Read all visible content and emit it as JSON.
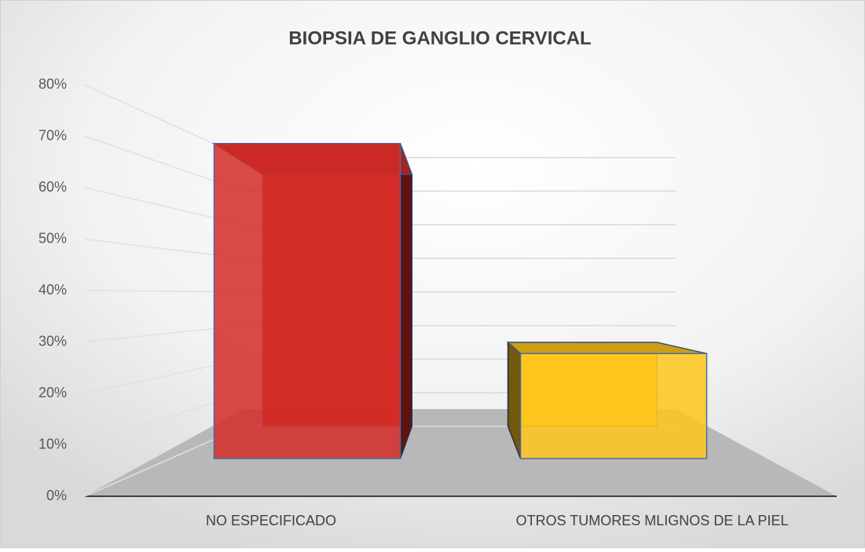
{
  "chart_data": {
    "type": "bar3d",
    "title": "BIOPSIA DE GANGLIO CERVICAL",
    "categories": [
      "NO ESPECIFICADO",
      "OTROS TUMORES MLIGNOS DE LA PIEL"
    ],
    "values": [
      75,
      25
    ],
    "colors": [
      "#d42a26",
      "#ffc61a"
    ],
    "ylim": [
      0,
      80
    ],
    "yticks": [
      {
        "value": 0,
        "label": "0%"
      },
      {
        "value": 10,
        "label": "10%"
      },
      {
        "value": 20,
        "label": "20%"
      },
      {
        "value": 30,
        "label": "30%"
      },
      {
        "value": 40,
        "label": "40%"
      },
      {
        "value": 50,
        "label": "50%"
      },
      {
        "value": 60,
        "label": "60%"
      },
      {
        "value": 70,
        "label": "70%"
      },
      {
        "value": 80,
        "label": "80%"
      }
    ],
    "grid": true
  }
}
